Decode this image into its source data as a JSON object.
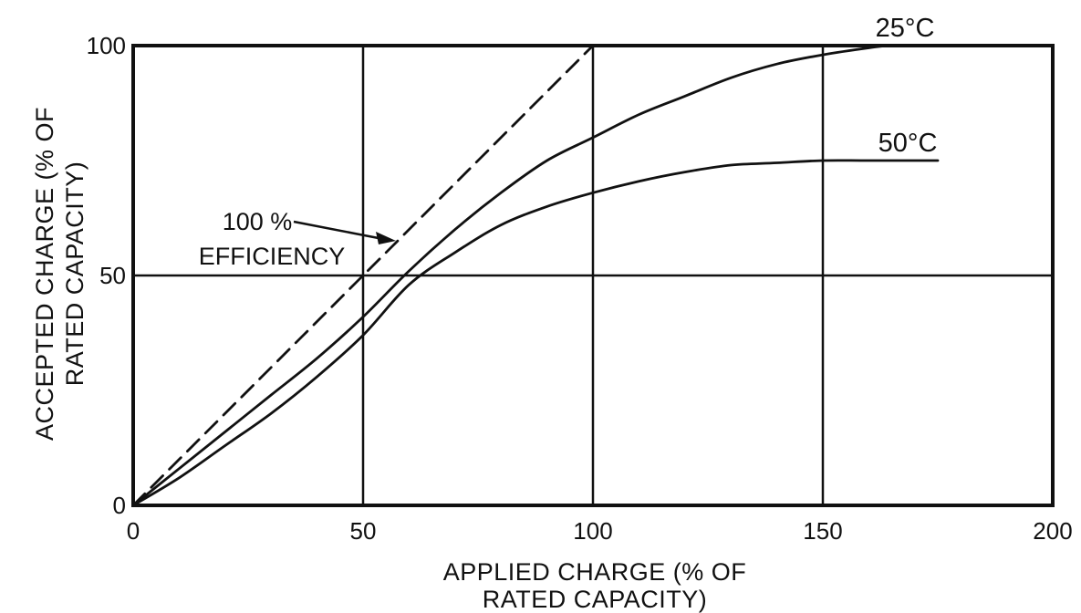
{
  "chart_data": {
    "type": "line",
    "xlabel_lines": [
      "APPLIED CHARGE (% OF",
      "RATED CAPACITY)"
    ],
    "ylabel_lines": [
      "ACCEPTED CHARGE (% OF",
      "RATED CAPACITY)"
    ],
    "xlim": [
      0,
      200
    ],
    "ylim": [
      0,
      100
    ],
    "x_ticks": [
      0,
      50,
      100,
      150,
      200
    ],
    "y_ticks": [
      0,
      50,
      100
    ],
    "x_tick_labels": [
      "0",
      "50",
      "100",
      "150",
      "200"
    ],
    "y_tick_labels": [
      "0",
      "50",
      "100"
    ],
    "grid": true,
    "series": [
      {
        "name": "25°C",
        "style": "solid",
        "x": [
          0,
          10,
          20,
          30,
          40,
          50,
          60,
          70,
          80,
          90,
          100,
          110,
          120,
          130,
          140,
          150,
          160,
          165,
          175
        ],
        "y": [
          0,
          8,
          16,
          24,
          32,
          41,
          51,
          60,
          68,
          75,
          80,
          85,
          89,
          93,
          96,
          98,
          99.5,
          100,
          100
        ]
      },
      {
        "name": "50°C",
        "style": "solid",
        "x": [
          0,
          10,
          20,
          30,
          40,
          50,
          60,
          70,
          80,
          90,
          100,
          110,
          120,
          130,
          140,
          150,
          160,
          175
        ],
        "y": [
          0,
          6,
          13,
          20,
          28,
          37,
          48,
          55,
          61,
          65,
          68,
          70.5,
          72.5,
          74,
          74.5,
          75,
          75,
          75
        ]
      },
      {
        "name": "100 % EFFICIENCY",
        "style": "dashed",
        "x": [
          0,
          100
        ],
        "y": [
          0,
          100
        ]
      }
    ],
    "annotations": [
      {
        "lines": [
          "100 %",
          "EFFICIENCY"
        ],
        "target": "dashed-line"
      }
    ]
  }
}
